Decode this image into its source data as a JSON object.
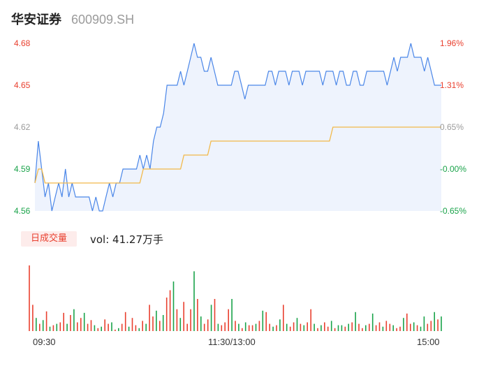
{
  "stock": {
    "name": "华安证券",
    "code": "600909.SH"
  },
  "colors": {
    "up": "#e9402f",
    "down": "#1aa34a",
    "neutral": "#9b9b9b",
    "price_line": "#4a86e8",
    "avg_line": "#f2b94a",
    "fill": "#eef3fd"
  },
  "price_axis": {
    "labels": [
      "4.68",
      "4.65",
      "4.62",
      "4.59",
      "4.56"
    ]
  },
  "pct_axis": {
    "labels": [
      "1.96%",
      "1.31%",
      "0.65%",
      "-0.00%",
      "-0.65%"
    ]
  },
  "volume_panel": {
    "period_tab": "日成交量",
    "vol_label": "vol: 41.27万手"
  },
  "time_axis": {
    "labels": [
      "09:30",
      "11:30/13:00",
      "15:00"
    ]
  },
  "chart_data": {
    "type": "line",
    "title": "",
    "ylim": [
      4.56,
      4.68
    ],
    "prev_close": 4.59,
    "series": [
      {
        "name": "price",
        "values": [
          4.58,
          4.61,
          4.59,
          4.57,
          4.58,
          4.56,
          4.57,
          4.58,
          4.57,
          4.59,
          4.57,
          4.58,
          4.57,
          4.57,
          4.57,
          4.57,
          4.57,
          4.56,
          4.57,
          4.56,
          4.56,
          4.57,
          4.58,
          4.57,
          4.58,
          4.58,
          4.59,
          4.59,
          4.59,
          4.59,
          4.59,
          4.6,
          4.59,
          4.6,
          4.59,
          4.61,
          4.62,
          4.62,
          4.63,
          4.65,
          4.65,
          4.65,
          4.65,
          4.66,
          4.65,
          4.66,
          4.67,
          4.68,
          4.67,
          4.67,
          4.66,
          4.66,
          4.67,
          4.66,
          4.65,
          4.65,
          4.65,
          4.65,
          4.65,
          4.66,
          4.66,
          4.65,
          4.64,
          4.65,
          4.65,
          4.65,
          4.65,
          4.65,
          4.65,
          4.66,
          4.66,
          4.65,
          4.66,
          4.66,
          4.66,
          4.65,
          4.66,
          4.66,
          4.66,
          4.65,
          4.66,
          4.66,
          4.66,
          4.66,
          4.66,
          4.65,
          4.66,
          4.66,
          4.66,
          4.65,
          4.66,
          4.66,
          4.65,
          4.65,
          4.66,
          4.66,
          4.65,
          4.65,
          4.66,
          4.66,
          4.66,
          4.66,
          4.66,
          4.66,
          4.65,
          4.66,
          4.67,
          4.66,
          4.67,
          4.67,
          4.67,
          4.68,
          4.67,
          4.67,
          4.67,
          4.66,
          4.67,
          4.66,
          4.65,
          4.65,
          4.65
        ]
      },
      {
        "name": "avg",
        "values": [
          4.58,
          4.59,
          4.59,
          4.58,
          4.58,
          4.58,
          4.58,
          4.58,
          4.58,
          4.58,
          4.58,
          4.58,
          4.58,
          4.58,
          4.58,
          4.58,
          4.58,
          4.58,
          4.58,
          4.58,
          4.58,
          4.58,
          4.58,
          4.58,
          4.58,
          4.58,
          4.58,
          4.58,
          4.58,
          4.58,
          4.58,
          4.58,
          4.59,
          4.59,
          4.59,
          4.59,
          4.59,
          4.59,
          4.59,
          4.59,
          4.59,
          4.59,
          4.59,
          4.59,
          4.6,
          4.6,
          4.6,
          4.6,
          4.6,
          4.6,
          4.6,
          4.6,
          4.61,
          4.61,
          4.61,
          4.61,
          4.61,
          4.61,
          4.61,
          4.61,
          4.61,
          4.61,
          4.61,
          4.61,
          4.61,
          4.61,
          4.61,
          4.61,
          4.61,
          4.61,
          4.61,
          4.61,
          4.61,
          4.61,
          4.61,
          4.61,
          4.61,
          4.61,
          4.61,
          4.61,
          4.61,
          4.61,
          4.61,
          4.61,
          4.61,
          4.61,
          4.61,
          4.61,
          4.62,
          4.62,
          4.62,
          4.62,
          4.62,
          4.62,
          4.62,
          4.62,
          4.62,
          4.62,
          4.62,
          4.62,
          4.62,
          4.62,
          4.62,
          4.62,
          4.62,
          4.62,
          4.62,
          4.62,
          4.62,
          4.62,
          4.62,
          4.62,
          4.62,
          4.62,
          4.62,
          4.62,
          4.62,
          4.62,
          4.62,
          4.62,
          4.62
        ]
      },
      {
        "name": "volume",
        "values": [
          90,
          36,
          18,
          10,
          15,
          27,
          6,
          8,
          10,
          12,
          25,
          10,
          22,
          30,
          12,
          18,
          25,
          10,
          15,
          8,
          4,
          6,
          16,
          10,
          12,
          2,
          4,
          10,
          26,
          6,
          18,
          8,
          4,
          14,
          10,
          36,
          20,
          28,
          14,
          22,
          46,
          56,
          68,
          30,
          18,
          40,
          10,
          30,
          82,
          44,
          20,
          10,
          16,
          36,
          44,
          10,
          8,
          12,
          30,
          44,
          14,
          10,
          4,
          12,
          8,
          8,
          10,
          14,
          28,
          26,
          10,
          6,
          8,
          16,
          36,
          10,
          6,
          12,
          18,
          10,
          8,
          12,
          30,
          10,
          4,
          8,
          12,
          6,
          14,
          4,
          8,
          8,
          6,
          10,
          12,
          26,
          10,
          4,
          8,
          10,
          24,
          8,
          12,
          6,
          14,
          10,
          8,
          4,
          6,
          18,
          24,
          10,
          12,
          8,
          6,
          20,
          10,
          14,
          26,
          16,
          20
        ]
      }
    ],
    "volume_colors": [
      "u",
      "u",
      "d",
      "u",
      "d",
      "u",
      "d",
      "u",
      "d",
      "u",
      "u",
      "d",
      "u",
      "d",
      "u",
      "u",
      "d",
      "u",
      "u",
      "d",
      "u",
      "d",
      "u",
      "u",
      "d",
      "u",
      "d",
      "u",
      "u",
      "d",
      "u",
      "u",
      "d",
      "u",
      "d",
      "u",
      "u",
      "d",
      "u",
      "d",
      "u",
      "u",
      "d",
      "u",
      "d",
      "u",
      "u",
      "u",
      "d",
      "u",
      "d",
      "u",
      "u",
      "d",
      "u",
      "d",
      "u",
      "u",
      "u",
      "d",
      "u",
      "d",
      "u",
      "d",
      "u",
      "u",
      "d",
      "u",
      "d",
      "u",
      "u",
      "d",
      "u",
      "d",
      "u",
      "d",
      "u",
      "u",
      "d",
      "u",
      "d",
      "u",
      "u",
      "d",
      "u",
      "d",
      "u",
      "u",
      "d",
      "u",
      "d",
      "d",
      "u",
      "d",
      "u",
      "d",
      "u",
      "u",
      "d",
      "u",
      "d",
      "u",
      "u",
      "d",
      "u",
      "u",
      "d",
      "u",
      "u",
      "d",
      "u",
      "u",
      "d",
      "u",
      "d",
      "d",
      "u",
      "u",
      "d",
      "u",
      "d"
    ]
  }
}
